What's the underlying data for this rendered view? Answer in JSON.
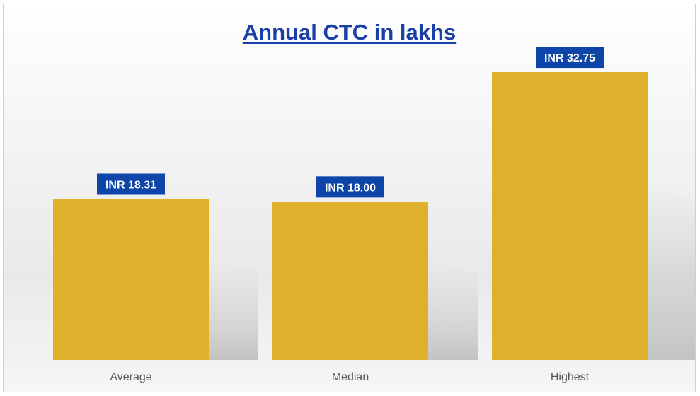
{
  "chart_data": {
    "type": "bar",
    "title": "Annual CTC in lakhs",
    "xlabel": "",
    "ylabel": "",
    "categories": [
      "Average",
      "Median",
      "Highest"
    ],
    "values": [
      18.31,
      18.0,
      32.75
    ],
    "data_labels": [
      "INR 18.31",
      "INR  18.00",
      "INR 32.75"
    ],
    "ylim": [
      0,
      35
    ],
    "grid": false,
    "legend": "none",
    "colors": {
      "bar": "#dfb02b",
      "data_label_bg": "#0e45a8",
      "data_label_text": "#ffffff",
      "title": "#1a3fa8",
      "tick_label": "#555555"
    }
  }
}
